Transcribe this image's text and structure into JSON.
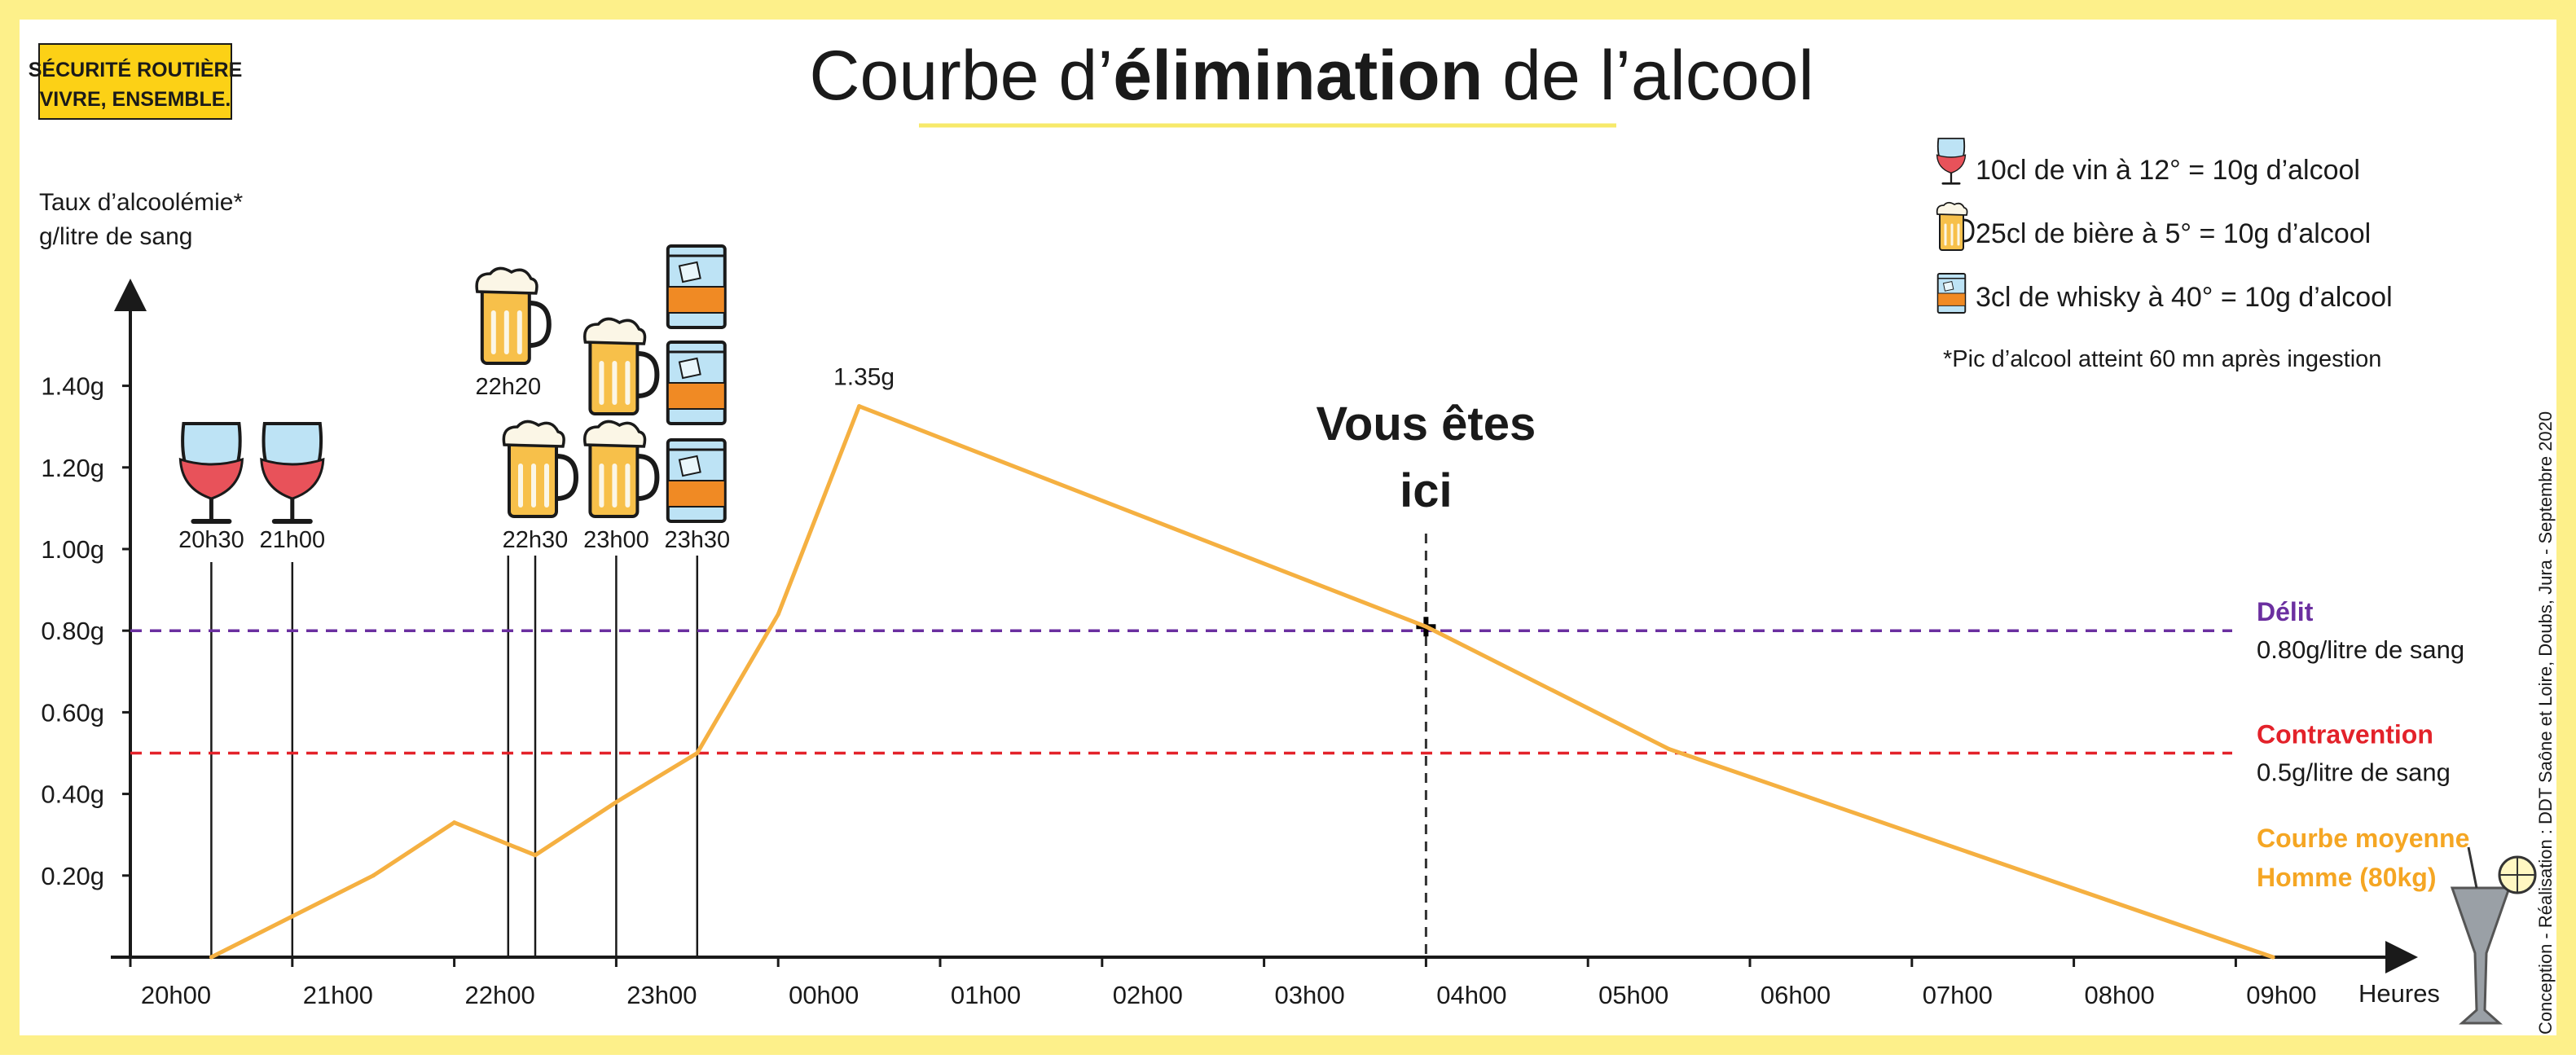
{
  "branding": {
    "logo_line1": "SÉCURITÉ ROUTIÈRE",
    "logo_line2": "VIVRE, ENSEMBLE.",
    "credit": "Conception - Réalisation : DDT Saône et Loire, Doubs, Jura - Septembre 2020"
  },
  "title": {
    "part1": "Courbe d’",
    "bold": "élimination",
    "part2": " de l’alcool"
  },
  "legend": {
    "wine": "10cl de vin à 12° = 10g d’alcool",
    "beer": "25cl de bière à 5° = 10g d’alcool",
    "whisky": "3cl de whisky à 40° = 10g d’alcool",
    "note": "*Pic d’alcool atteint 60 mn après ingestion",
    "wine_icon": "wine-glass-icon",
    "beer_icon": "beer-mug-icon",
    "whisky_icon": "whisky-glass-icon"
  },
  "here_marker": {
    "line1": "Vous êtes",
    "line2": "ici",
    "time": 8.0
  },
  "thresholds": [
    {
      "label": "Délit",
      "sub": "0.80g/litre de sang",
      "value": 0.8,
      "color": "#6b2fa0"
    },
    {
      "label": "Contravention",
      "sub": "0.5g/litre de sang",
      "value": 0.5,
      "color": "#e3222a"
    }
  ],
  "colors": {
    "frame": "#fdf08a",
    "curve": "#f5b041",
    "title_underline": "#f7e96a",
    "logo_bg": "#fcd116",
    "text": "#1a1a1a"
  },
  "drinks": [
    {
      "kind": "wine",
      "time_label": "20h30",
      "time": 0.5,
      "count": 1
    },
    {
      "kind": "wine",
      "time_label": "21h00",
      "time": 1.0,
      "count": 1
    },
    {
      "kind": "beer",
      "time_label": "22h20",
      "time": 2.333,
      "count": 1,
      "stack": "top"
    },
    {
      "kind": "beer",
      "time_label": "22h30",
      "time": 2.5,
      "count": 1
    },
    {
      "kind": "beer",
      "time_label": "23h00",
      "time": 3.0,
      "count": 2
    },
    {
      "kind": "whisky",
      "time_label": "23h30",
      "time": 3.5,
      "count": 3
    }
  ],
  "chart_data": {
    "type": "line",
    "title": "Courbe d’élimination de l’alcool",
    "ylabel_line1": "Taux d’alcoolémie*",
    "ylabel_line2": "g/litre de sang",
    "xlabel": "Heures",
    "x_tick_labels": [
      "20h00",
      "21h00",
      "22h00",
      "23h00",
      "00h00",
      "01h00",
      "02h00",
      "03h00",
      "04h00",
      "05h00",
      "06h00",
      "07h00",
      "08h00",
      "09h00"
    ],
    "y_ticks": [
      0.2,
      0.4,
      0.6,
      0.8,
      1.0,
      1.2,
      1.4
    ],
    "y_tick_labels": [
      "0.20g",
      "0.40g",
      "0.60g",
      "0.80g",
      "1.00g",
      "1.20g",
      "1.40g"
    ],
    "xlim": [
      0,
      14
    ],
    "ylim": [
      0,
      1.6
    ],
    "series": [
      {
        "name": "Courbe moyenne Homme (80kg)",
        "name_line1": "Courbe moyenne",
        "name_line2": "Homme (80kg)",
        "x": [
          0.5,
          1.0,
          1.5,
          2.0,
          2.5,
          3.0,
          3.5,
          4.0,
          4.5,
          8.0,
          9.5,
          13.23
        ],
        "y": [
          0.0,
          0.1,
          0.2,
          0.33,
          0.25,
          0.38,
          0.5,
          0.84,
          1.35,
          0.81,
          0.51,
          0.0
        ]
      }
    ],
    "peak_label": "1.35g",
    "peak_x": 4.5,
    "peak_y": 1.35
  }
}
